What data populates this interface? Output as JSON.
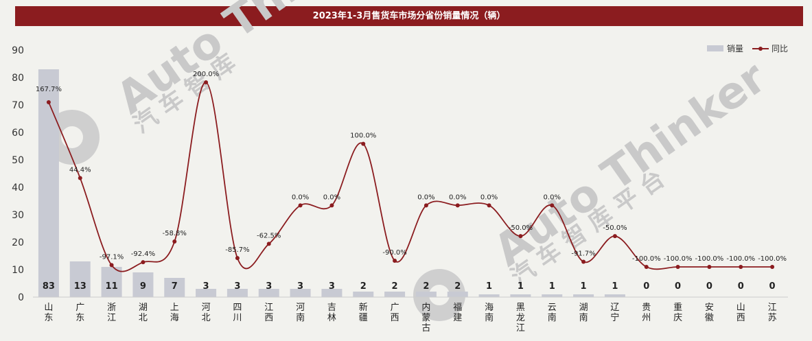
{
  "chart_data": {
    "type": "bar",
    "title": "2023年1-3月售货车市场分省份销量情况（辆）",
    "categories": [
      "山东",
      "广东",
      "浙江",
      "湖北",
      "上海",
      "河北",
      "四川",
      "江西",
      "河南",
      "吉林",
      "新疆",
      "广西",
      "内蒙古",
      "福建",
      "海南",
      "黑龙江",
      "云南",
      "湖南",
      "辽宁",
      "贵州",
      "重庆",
      "安徽",
      "山西",
      "江苏"
    ],
    "series": [
      {
        "name": "销量",
        "type": "bar",
        "color": "#c8cad3",
        "values": [
          83,
          13,
          11,
          9,
          7,
          3,
          3,
          3,
          3,
          3,
          2,
          2,
          2,
          2,
          1,
          1,
          1,
          1,
          1,
          0,
          0,
          0,
          0,
          0
        ]
      },
      {
        "name": "同比",
        "type": "line",
        "color": "#8b1c1f",
        "labels": [
          "167.7%",
          "44.4%",
          "-97.1%",
          "-92.4%",
          "-58.8%",
          "200.0%",
          "-85.7%",
          "-62.5%",
          "0.0%",
          "0.0%",
          "100.0%",
          "-90.0%",
          "0.0%",
          "0.0%",
          "0.0%",
          "-50.0%",
          "0.0%",
          "-91.7%",
          "-50.0%",
          "-100.0%",
          "-100.0%",
          "-100.0%",
          "-100.0%",
          "-100.0%"
        ]
      }
    ],
    "ylim": [
      0,
      90
    ],
    "yticks": [
      0,
      10,
      20,
      30,
      40,
      50,
      60,
      70,
      80,
      90
    ],
    "legend_position": "top-right",
    "watermark": "Auto Thinker 汽车智库平台"
  }
}
